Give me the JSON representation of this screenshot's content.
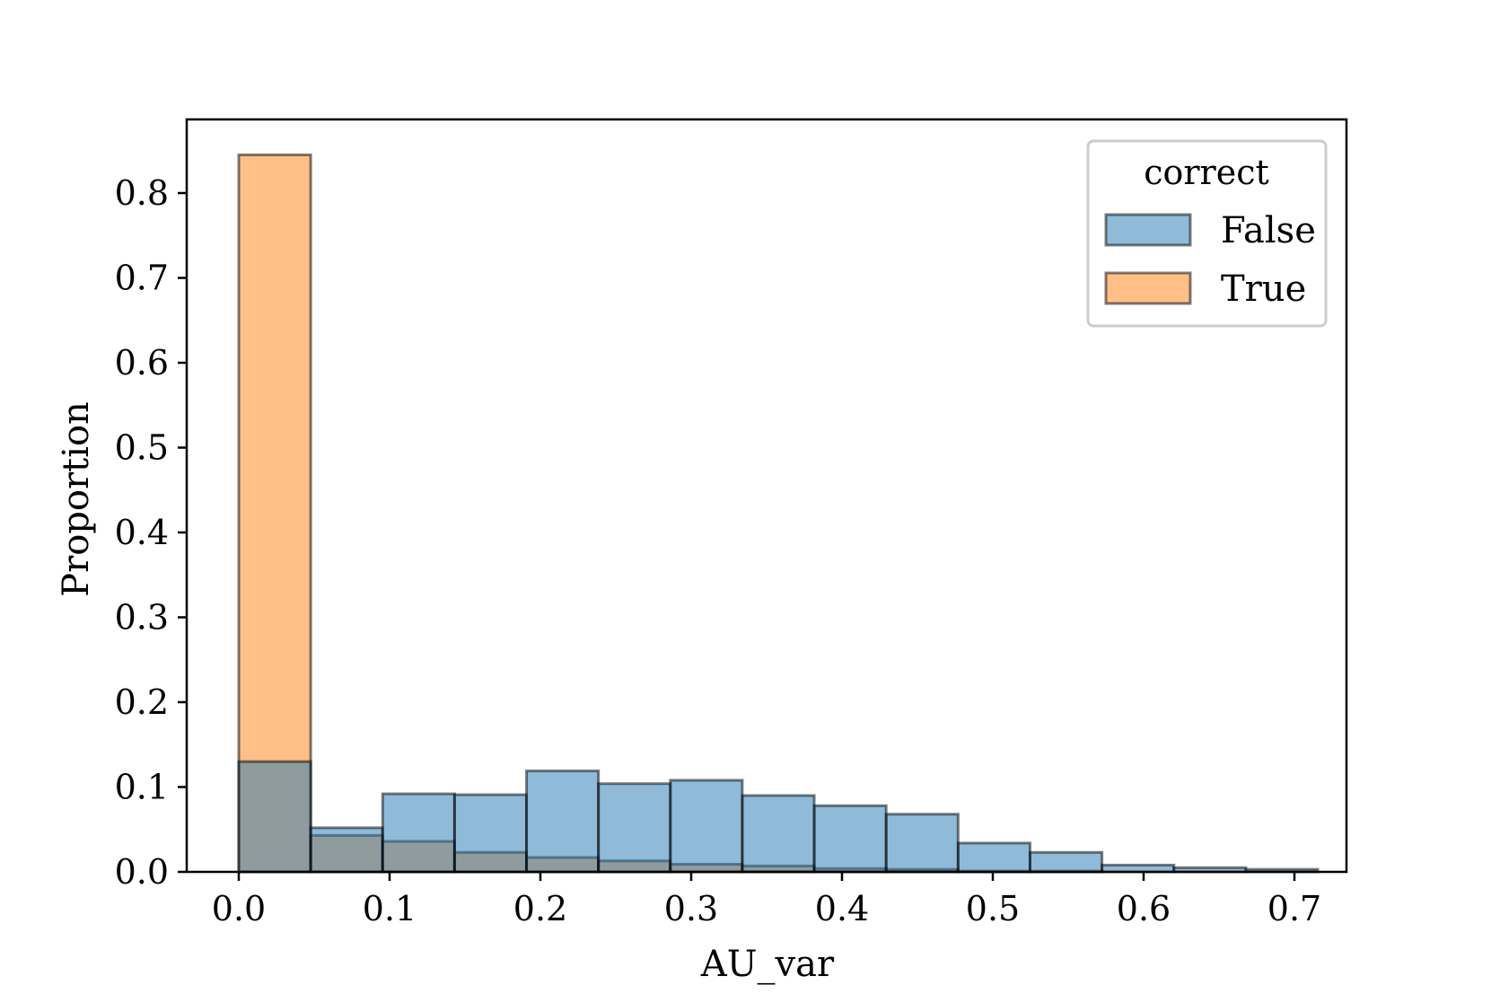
{
  "chart_data": {
    "type": "bar",
    "subtype": "histogram-overlay",
    "title": "",
    "xlabel": "AU_var",
    "ylabel": "Proportion",
    "xlim": [
      -0.07,
      1.5
    ],
    "ylim": [
      0,
      0.885
    ],
    "x_ticks": [
      0.0,
      0.1,
      0.2,
      0.3,
      0.4,
      0.5,
      0.6,
      0.7
    ],
    "x_tick_labels": [
      "0.0",
      "0.1",
      "0.2",
      "0.3",
      "0.4",
      "0.5",
      "0.6",
      "0.7"
    ],
    "y_ticks": [
      0.0,
      0.1,
      0.2,
      0.3,
      0.4,
      0.5,
      0.6,
      0.7,
      0.8
    ],
    "y_tick_labels": [
      "0.0",
      "0.1",
      "0.2",
      "0.3",
      "0.4",
      "0.5",
      "0.6",
      "0.7",
      "0.8"
    ],
    "bin_edges": [
      0.0,
      0.0477,
      0.0954,
      0.1431,
      0.1908,
      0.2385,
      0.2862,
      0.3339,
      0.3816,
      0.4293,
      0.477,
      0.5247,
      0.5724,
      0.6201,
      0.6678,
      0.7155
    ],
    "grid": false,
    "legend": {
      "title": "correct",
      "position": "top-right"
    },
    "series": [
      {
        "name": "True",
        "color": "#ff7f0e",
        "values": [
          0.845,
          0.043,
          0.036,
          0.023,
          0.017,
          0.013,
          0.009,
          0.007,
          0.004,
          0.003,
          0.001,
          0.001,
          0.0,
          0.0,
          0.0
        ]
      },
      {
        "name": "False",
        "color": "#1f77b4",
        "values": [
          0.13,
          0.052,
          0.092,
          0.091,
          0.119,
          0.104,
          0.108,
          0.09,
          0.078,
          0.068,
          0.034,
          0.023,
          0.008,
          0.005,
          0.003
        ]
      }
    ]
  }
}
